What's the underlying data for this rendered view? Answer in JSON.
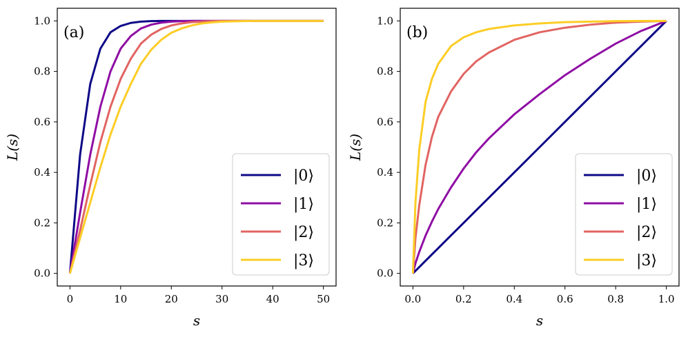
{
  "chart_data": [
    {
      "type": "line",
      "panel_label": "(a)",
      "xlabel": "s",
      "ylabel": "L(s)",
      "xlim": [
        -2.5,
        52.5
      ],
      "ylim": [
        -0.05,
        1.05
      ],
      "xticks": [
        0,
        10,
        20,
        30,
        40,
        50
      ],
      "yticks": [
        0.0,
        0.2,
        0.4,
        0.6,
        0.8,
        1.0
      ],
      "xtick_labels": [
        "0",
        "10",
        "20",
        "30",
        "40",
        "50"
      ],
      "ytick_labels": [
        "0.0",
        "0.2",
        "0.4",
        "0.6",
        "0.8",
        "1.0"
      ],
      "legend_position": "lower-right",
      "x": [
        0,
        2,
        4,
        6,
        8,
        10,
        12,
        14,
        16,
        18,
        20,
        22,
        24,
        26,
        28,
        30,
        32,
        34,
        36,
        40,
        45,
        50
      ],
      "series": [
        {
          "name": "|0⟩",
          "color": "#0d0887",
          "values": [
            0.0,
            0.47,
            0.75,
            0.89,
            0.955,
            0.98,
            0.992,
            0.997,
            0.999,
            1.0,
            1.0,
            1.0,
            1.0,
            1.0,
            1.0,
            1.0,
            1.0,
            1.0,
            1.0,
            1.0,
            1.0,
            1.0
          ]
        },
        {
          "name": "|1⟩",
          "color": "#8f0da4",
          "values": [
            0.0,
            0.24,
            0.47,
            0.66,
            0.8,
            0.89,
            0.94,
            0.97,
            0.985,
            0.993,
            0.997,
            0.999,
            1.0,
            1.0,
            1.0,
            1.0,
            1.0,
            1.0,
            1.0,
            1.0,
            1.0,
            1.0
          ]
        },
        {
          "name": "|2⟩",
          "color": "#e16462",
          "values": [
            0.0,
            0.17,
            0.35,
            0.52,
            0.66,
            0.77,
            0.85,
            0.91,
            0.945,
            0.968,
            0.982,
            0.99,
            0.995,
            0.997,
            0.999,
            1.0,
            1.0,
            1.0,
            1.0,
            1.0,
            1.0,
            1.0
          ]
        },
        {
          "name": "|3⟩",
          "color": "#fccd25",
          "values": [
            0.0,
            0.14,
            0.28,
            0.42,
            0.55,
            0.66,
            0.75,
            0.83,
            0.885,
            0.925,
            0.953,
            0.97,
            0.982,
            0.99,
            0.994,
            0.997,
            0.998,
            0.999,
            1.0,
            1.0,
            1.0,
            1.0
          ]
        }
      ]
    },
    {
      "type": "line",
      "panel_label": "(b)",
      "xlabel": "s",
      "ylabel": "L(s)",
      "xlim": [
        -0.05,
        1.05
      ],
      "ylim": [
        -0.05,
        1.05
      ],
      "xticks": [
        0.0,
        0.2,
        0.4,
        0.6,
        0.8,
        1.0
      ],
      "yticks": [
        0.0,
        0.2,
        0.4,
        0.6,
        0.8,
        1.0
      ],
      "xtick_labels": [
        "0.0",
        "0.2",
        "0.4",
        "0.6",
        "0.8",
        "1.0"
      ],
      "ytick_labels": [
        "0.0",
        "0.2",
        "0.4",
        "0.6",
        "0.8",
        "1.0"
      ],
      "legend_position": "lower-right",
      "x": [
        0.0,
        0.01,
        0.025,
        0.05,
        0.075,
        0.1,
        0.15,
        0.2,
        0.25,
        0.3,
        0.4,
        0.5,
        0.6,
        0.7,
        0.8,
        0.9,
        1.0
      ],
      "series": [
        {
          "name": "|0⟩",
          "color": "#0d0887",
          "values": [
            0.0,
            0.01,
            0.025,
            0.05,
            0.075,
            0.1,
            0.15,
            0.2,
            0.25,
            0.3,
            0.4,
            0.5,
            0.6,
            0.7,
            0.8,
            0.9,
            1.0
          ]
        },
        {
          "name": "|1⟩",
          "color": "#8f0da4",
          "values": [
            0.0,
            0.04,
            0.085,
            0.15,
            0.205,
            0.255,
            0.34,
            0.415,
            0.48,
            0.535,
            0.63,
            0.71,
            0.785,
            0.85,
            0.91,
            0.96,
            1.0
          ]
        },
        {
          "name": "|2⟩",
          "color": "#e16462",
          "values": [
            0.0,
            0.14,
            0.27,
            0.43,
            0.54,
            0.62,
            0.72,
            0.79,
            0.84,
            0.875,
            0.925,
            0.955,
            0.973,
            0.985,
            0.993,
            0.997,
            1.0
          ]
        },
        {
          "name": "|3⟩",
          "color": "#fccd25",
          "values": [
            0.0,
            0.28,
            0.49,
            0.68,
            0.77,
            0.83,
            0.9,
            0.935,
            0.955,
            0.968,
            0.982,
            0.99,
            0.995,
            0.997,
            0.999,
            1.0,
            1.0
          ]
        }
      ]
    }
  ]
}
